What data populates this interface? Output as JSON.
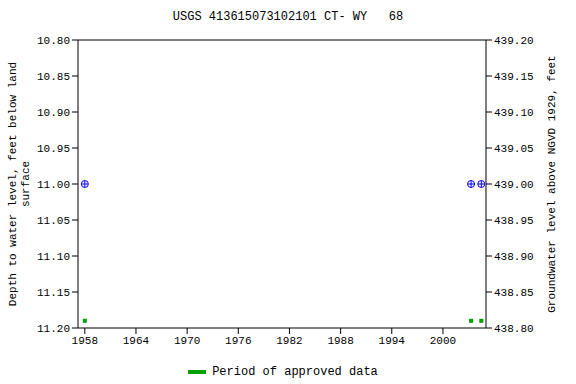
{
  "chart_data": {
    "type": "scatter",
    "title": "USGS 413615073102101 CT- WY   68",
    "y_label": [
      "Depth to water level, feet below land",
      "surface"
    ],
    "y2_label": "Groundwater level above NGVD 1929, feet",
    "x": [
      1958.0,
      2003.3,
      2004.5
    ],
    "xlim": [
      1957.2,
      2005.05
    ],
    "xticks": [
      1958,
      1964,
      1970,
      1976,
      1982,
      1988,
      1994,
      2000
    ],
    "ylim": [
      10.8,
      11.2
    ],
    "yticks": [
      {
        "value": 10.8,
        "label": "10.80"
      },
      {
        "value": 10.85,
        "label": "10.85"
      },
      {
        "value": 10.9,
        "label": "10.90"
      },
      {
        "value": 10.95,
        "label": "10.95"
      },
      {
        "value": 11,
        "label": "11.00"
      },
      {
        "value": 11.05,
        "label": "11.05"
      },
      {
        "value": 11.1,
        "label": "11.10"
      },
      {
        "value": 11.15,
        "label": "11.15"
      },
      {
        "value": 11.2,
        "label": "11.20"
      }
    ],
    "y2lim": [
      438.8,
      439.2
    ],
    "y2ticks": [
      {
        "value": 438.8,
        "label": "438.80"
      },
      {
        "value": 438.85,
        "label": "438.85"
      },
      {
        "value": 438.9,
        "label": "438.90"
      },
      {
        "value": 438.95,
        "label": "438.95"
      },
      {
        "value": 439,
        "label": "439.00"
      },
      {
        "value": 439.05,
        "label": "439.05"
      },
      {
        "value": 439.1,
        "label": "439.10"
      },
      {
        "value": 439.15,
        "label": "439.15"
      },
      {
        "value": 439.2,
        "label": "439.20"
      }
    ],
    "series": [
      {
        "color": "#0000ff",
        "marker": "circle",
        "values": [
          11,
          11,
          11
        ]
      },
      {
        "name": "Period of approved data",
        "color": "#00a000",
        "marker": "square",
        "values": [
          11.19,
          11.19,
          11.19
        ]
      }
    ],
    "grid": false,
    "legend": "bottom"
  }
}
